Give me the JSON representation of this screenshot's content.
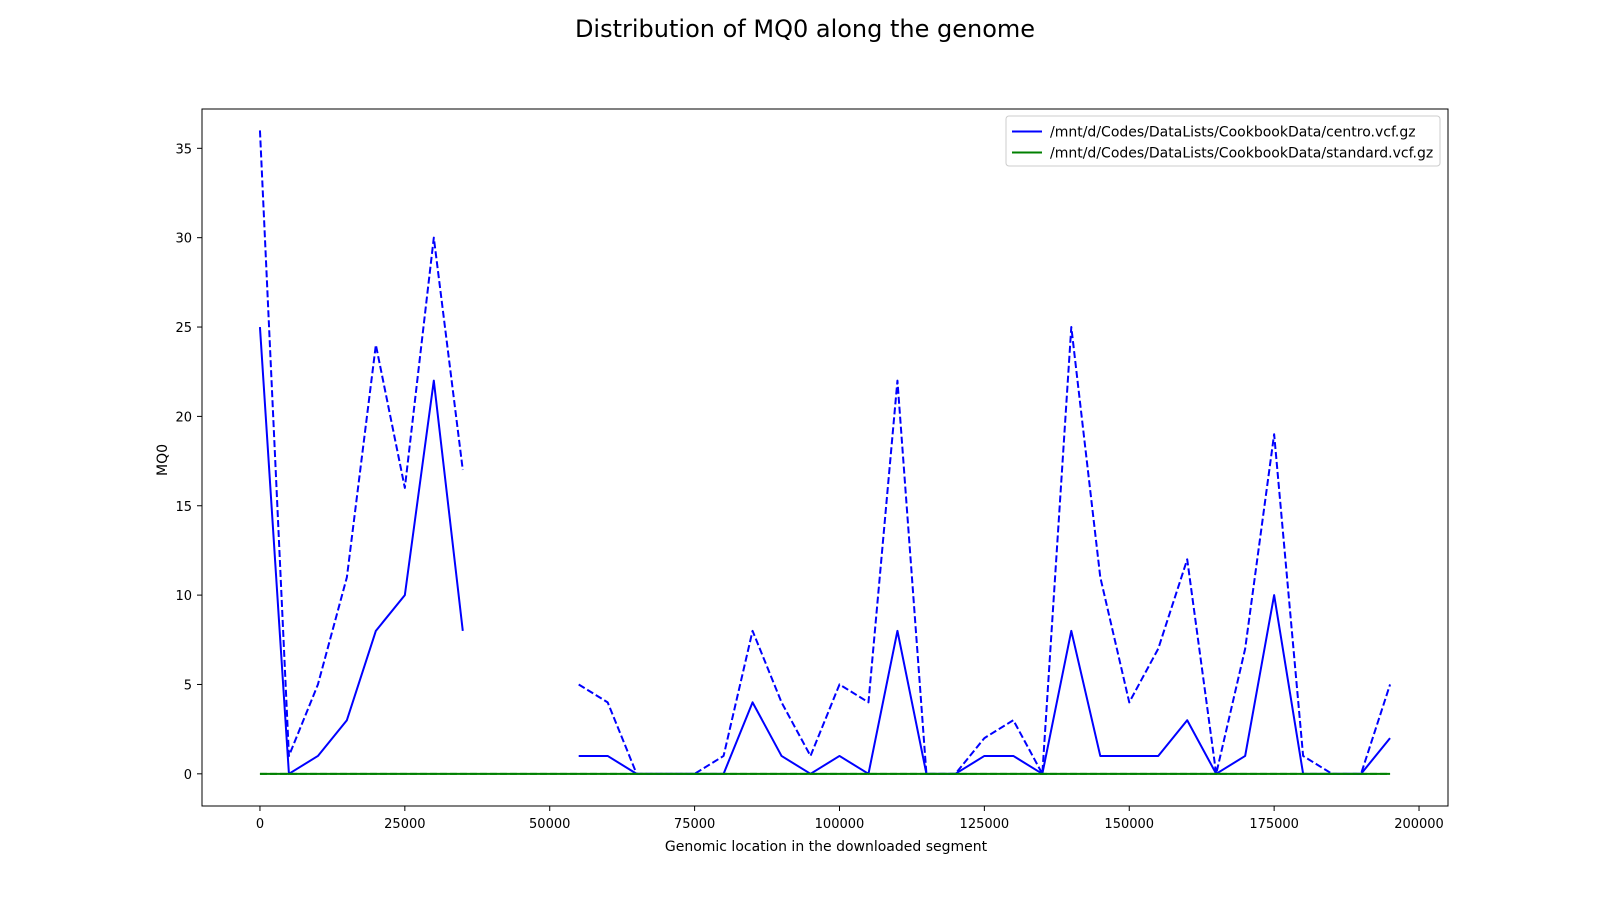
{
  "chart_data": {
    "type": "line",
    "title": "Distribution of MQ0 along the genome",
    "xlabel": "Genomic location in the downloaded segment",
    "ylabel": "MQ0",
    "xlim": [
      -10000,
      205000
    ],
    "ylim": [
      -1.8,
      37.2
    ],
    "xticks": [
      0,
      25000,
      50000,
      75000,
      100000,
      125000,
      150000,
      175000,
      200000
    ],
    "yticks": [
      0,
      5,
      10,
      15,
      20,
      25,
      30,
      35
    ],
    "grid": false,
    "legend_position": "top-right",
    "series": [
      {
        "name": "/mnt/d/Codes/DataLists/CookbookData/centro.vcf.gz",
        "style": "solid",
        "color": "#0000ff",
        "x": [
          0,
          5000,
          10000,
          15000,
          20000,
          25000,
          30000,
          35000,
          40000,
          45000,
          50000,
          55000,
          60000,
          65000,
          70000,
          75000,
          80000,
          85000,
          90000,
          95000,
          100000,
          105000,
          110000,
          115000,
          120000,
          125000,
          130000,
          135000,
          140000,
          145000,
          150000,
          155000,
          160000,
          165000,
          170000,
          175000,
          180000,
          185000,
          190000,
          195000
        ],
        "y": [
          25,
          0,
          1,
          3,
          8,
          10,
          22,
          8,
          null,
          null,
          null,
          1,
          1,
          0,
          0,
          0,
          0,
          4,
          1,
          0,
          1,
          0,
          8,
          0,
          0,
          1,
          1,
          0,
          8,
          1,
          1,
          1,
          3,
          0,
          1,
          10,
          0,
          0,
          0,
          2
        ]
      },
      {
        "name": "",
        "style": "dashed",
        "color": "#0000ff",
        "x": [
          0,
          5000,
          10000,
          15000,
          20000,
          25000,
          30000,
          35000,
          40000,
          45000,
          50000,
          55000,
          60000,
          65000,
          70000,
          75000,
          80000,
          85000,
          90000,
          95000,
          100000,
          105000,
          110000,
          115000,
          120000,
          125000,
          130000,
          135000,
          140000,
          145000,
          150000,
          155000,
          160000,
          165000,
          170000,
          175000,
          180000,
          185000,
          190000,
          195000
        ],
        "y": [
          36,
          1,
          5,
          11,
          24,
          16,
          30,
          17,
          null,
          null,
          null,
          5,
          4,
          0,
          0,
          0,
          1,
          8,
          4,
          1,
          5,
          4,
          22,
          0,
          0,
          2,
          3,
          0,
          25,
          11,
          4,
          7,
          12,
          0,
          7,
          19,
          1,
          0,
          0,
          5
        ]
      },
      {
        "name": "/mnt/d/Codes/DataLists/CookbookData/standard.vcf.gz",
        "style": "solid",
        "color": "#008000",
        "x": [
          0,
          5000,
          10000,
          15000,
          20000,
          25000,
          30000,
          35000,
          40000,
          45000,
          50000,
          55000,
          60000,
          65000,
          70000,
          75000,
          80000,
          85000,
          90000,
          95000,
          100000,
          105000,
          110000,
          115000,
          120000,
          125000,
          130000,
          135000,
          140000,
          145000,
          150000,
          155000,
          160000,
          165000,
          170000,
          175000,
          180000,
          185000,
          190000,
          195000
        ],
        "y": [
          0,
          0,
          0,
          0,
          0,
          0,
          0,
          0,
          0,
          0,
          0,
          0,
          0,
          0,
          0,
          0,
          0,
          0,
          0,
          0,
          0,
          0,
          0,
          0,
          0,
          0,
          0,
          0,
          0,
          0,
          0,
          0,
          0,
          0,
          0,
          0,
          0,
          0,
          0,
          0
        ]
      },
      {
        "name": "",
        "style": "dashed",
        "color": "#008000",
        "x": [
          0,
          5000,
          10000,
          15000,
          20000,
          25000,
          30000,
          35000,
          40000,
          45000,
          50000,
          55000,
          60000,
          65000,
          70000,
          75000,
          80000,
          85000,
          90000,
          95000,
          100000,
          105000,
          110000,
          115000,
          120000,
          125000,
          130000,
          135000,
          140000,
          145000,
          150000,
          155000,
          160000,
          165000,
          170000,
          175000,
          180000,
          185000,
          190000,
          195000
        ],
        "y": [
          0,
          0,
          0,
          0,
          0,
          0,
          0,
          0,
          0,
          0,
          0,
          0,
          0,
          0,
          0,
          0,
          0,
          0,
          0,
          0,
          0,
          0,
          0,
          0,
          0,
          0,
          0,
          0,
          0,
          0,
          0,
          0,
          0,
          0,
          0,
          0,
          0,
          0,
          0,
          0
        ]
      }
    ]
  }
}
